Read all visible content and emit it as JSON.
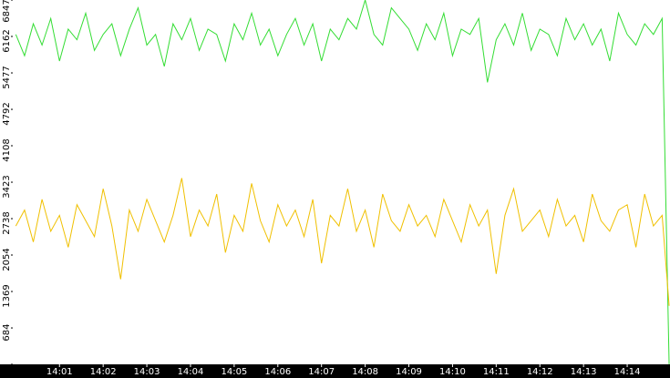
{
  "chart_data": {
    "type": "line",
    "x": [
      0,
      0.2,
      0.4,
      0.6,
      0.8,
      1,
      1.2,
      1.4,
      1.6,
      1.8,
      2,
      2.2,
      2.4,
      2.6,
      2.8,
      3,
      3.2,
      3.4,
      3.6,
      3.8,
      4,
      4.2,
      4.4,
      4.6,
      4.8,
      5,
      5.2,
      5.4,
      5.6,
      5.8,
      6,
      6.2,
      6.4,
      6.6,
      6.8,
      7,
      7.2,
      7.4,
      7.6,
      7.8,
      8,
      8.2,
      8.4,
      8.6,
      8.8,
      9,
      9.2,
      9.4,
      9.6,
      9.8,
      10,
      10.2,
      10.4,
      10.6,
      10.8,
      11,
      11.2,
      11.4,
      11.6,
      11.8,
      12,
      12.2,
      12.4,
      12.6,
      12.8,
      13,
      13.2,
      13.4,
      13.6,
      13.8,
      14,
      14.2,
      14.4,
      14.6,
      14.8,
      14.96
    ],
    "series": [
      {
        "color": "#33dd33",
        "values": [
          6200,
          5800,
          6400,
          6000,
          6500,
          5700,
          6300,
          6100,
          6600,
          5900,
          6200,
          6400,
          5800,
          6300,
          6700,
          6000,
          6200,
          5600,
          6400,
          6100,
          6500,
          5900,
          6300,
          6200,
          5700,
          6400,
          6100,
          6600,
          6000,
          6300,
          5800,
          6200,
          6500,
          6000,
          6400,
          5700,
          6300,
          6100,
          6500,
          6300,
          6847,
          6200,
          6000,
          6700,
          6500,
          6300,
          5900,
          6400,
          6100,
          6600,
          5800,
          6300,
          6200,
          6500,
          5300,
          6100,
          6400,
          6000,
          6600,
          5900,
          6300,
          6200,
          5800,
          6500,
          6100,
          6400,
          6000,
          6300,
          5700,
          6600,
          6200,
          6000,
          6400,
          6200,
          6500,
          0
        ]
      },
      {
        "color": "#f0c000",
        "values": [
          2600,
          2900,
          2300,
          3100,
          2500,
          2800,
          2200,
          3000,
          2700,
          2400,
          3300,
          2600,
          1600,
          2900,
          2500,
          3100,
          2700,
          2300,
          2800,
          3500,
          2400,
          2900,
          2600,
          3200,
          2100,
          2800,
          2500,
          3400,
          2700,
          2300,
          3000,
          2600,
          2900,
          2400,
          3100,
          1900,
          2800,
          2600,
          3300,
          2500,
          2900,
          2200,
          3200,
          2700,
          2500,
          3000,
          2600,
          2800,
          2400,
          3100,
          2700,
          2300,
          3000,
          2600,
          2900,
          1700,
          2800,
          3300,
          2500,
          2700,
          2900,
          2400,
          3100,
          2600,
          2800,
          2300,
          3200,
          2700,
          2500,
          2900,
          3000,
          2200,
          3200,
          2600,
          2800,
          1100
        ]
      }
    ],
    "ylim": [
      0,
      6847
    ],
    "yticks": [
      0,
      684,
      1369,
      2054,
      2738,
      3423,
      4108,
      4792,
      5477,
      6162,
      6847
    ],
    "xlim": [
      -0.07,
      14.98
    ],
    "xticks": [
      {
        "value": 1,
        "label": "14:01"
      },
      {
        "value": 2,
        "label": "14:02"
      },
      {
        "value": 3,
        "label": "14:03"
      },
      {
        "value": 4,
        "label": "14:04"
      },
      {
        "value": 5,
        "label": "14:05"
      },
      {
        "value": 6,
        "label": "14:06"
      },
      {
        "value": 7,
        "label": "14:07"
      },
      {
        "value": 8,
        "label": "14:08"
      },
      {
        "value": 9,
        "label": "14:09"
      },
      {
        "value": 10,
        "label": "14:10"
      },
      {
        "value": 11,
        "label": "14:11"
      },
      {
        "value": 12,
        "label": "14:12"
      },
      {
        "value": 13,
        "label": "14:13"
      },
      {
        "value": 14,
        "label": "14:14"
      }
    ]
  }
}
